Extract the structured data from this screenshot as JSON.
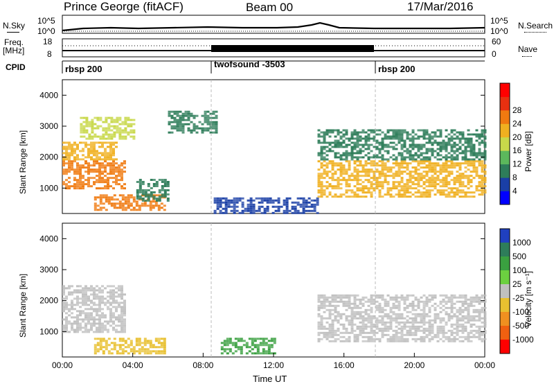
{
  "header": {
    "station": "Prince George (fitACF)",
    "beam": "Beam 00",
    "date": "17/Mar/2016"
  },
  "top_panels": {
    "nsky_label": "N.Sky",
    "nsky_ticks": [
      "10^5",
      "10^0"
    ],
    "nsearch_label": "N.Search",
    "nsearch_ticks": [
      "10^5",
      "10^0"
    ],
    "freq_label_1": "Freq.",
    "freq_label_2": "[MHz]",
    "freq_ticks": [
      "18",
      "8"
    ],
    "nave_label": "Nave",
    "nave_ticks": [
      "60",
      "0"
    ],
    "cpid_label": "CPID",
    "cpid_segments": [
      {
        "label": "rbsp 200",
        "start_hour": 0
      },
      {
        "label": "twofsound -3503",
        "start_hour": 8.6
      },
      {
        "label": "rbsp 200",
        "start_hour": 18
      }
    ]
  },
  "chart_data": [
    {
      "type": "heatmap",
      "quantity": "Power",
      "ylabel": "Slant Range [km]",
      "xlabel": "",
      "ylim": [
        180,
        4500
      ],
      "yticks": [
        1000,
        2000,
        3000,
        4000
      ],
      "xlim": [
        0,
        24
      ],
      "colorbar": {
        "label": "Power [dB]",
        "ticks": [
          "4",
          "8",
          "12",
          "16",
          "20",
          "24",
          "28"
        ],
        "colors": [
          "#0000ff",
          "#1a3fa6",
          "#2e7d5a",
          "#5cb85c",
          "#c8d84a",
          "#f0b020",
          "#f07a10",
          "#e83010",
          "#ff0000"
        ]
      },
      "regions": [
        {
          "t0": 0.0,
          "t1": 3.5,
          "r0": 1000,
          "r1": 1900,
          "value": 26
        },
        {
          "t0": 0.0,
          "t1": 3.0,
          "r0": 1900,
          "r1": 2500,
          "value": 22
        },
        {
          "t0": 1.0,
          "t1": 4.0,
          "r0": 2600,
          "r1": 3300,
          "value": 16
        },
        {
          "t0": 1.8,
          "t1": 5.8,
          "r0": 300,
          "r1": 800,
          "value": 24
        },
        {
          "t0": 4.2,
          "t1": 6.0,
          "r0": 600,
          "r1": 1300,
          "value": 10
        },
        {
          "t0": 6.0,
          "t1": 8.7,
          "r0": 2800,
          "r1": 3500,
          "value": 10
        },
        {
          "t0": 8.6,
          "t1": 14.5,
          "r0": 200,
          "r1": 700,
          "value": 6
        },
        {
          "t0": 14.5,
          "t1": 24.0,
          "r0": 700,
          "r1": 1900,
          "value": 22
        },
        {
          "t0": 14.5,
          "t1": 24.0,
          "r0": 1900,
          "r1": 2900,
          "value": 10
        }
      ]
    },
    {
      "type": "heatmap",
      "quantity": "Velocity",
      "ylabel": "Slant Range [km]",
      "xlabel": "Time UT",
      "ylim": [
        180,
        4500
      ],
      "yticks": [
        1000,
        2000,
        3000,
        4000
      ],
      "xlim": [
        0,
        24
      ],
      "xticks": [
        "00:00",
        "04:00",
        "08:00",
        "12:00",
        "16:00",
        "20:00",
        "00:00"
      ],
      "colorbar": {
        "label": "Velocity [m s⁻¹]",
        "ticks": [
          "1000",
          "500",
          "100",
          "25",
          "-25",
          "-100",
          "-500",
          "-1000"
        ],
        "colors": [
          "#2040c0",
          "#2e7d5a",
          "#3aa040",
          "#6cd040",
          "#c0c0c0",
          "#e8c030",
          "#f09020",
          "#f06010",
          "#ff0000"
        ]
      },
      "regions": [
        {
          "t0": 0.0,
          "t1": 3.5,
          "r0": 1000,
          "r1": 2500,
          "value": 0
        },
        {
          "t0": 1.8,
          "t1": 5.8,
          "r0": 300,
          "r1": 800,
          "value": -100
        },
        {
          "t0": 9.0,
          "t1": 12.0,
          "r0": 300,
          "r1": 800,
          "value": 100
        },
        {
          "t0": 14.5,
          "t1": 24.0,
          "r0": 700,
          "r1": 2200,
          "value": 0
        }
      ]
    }
  ]
}
